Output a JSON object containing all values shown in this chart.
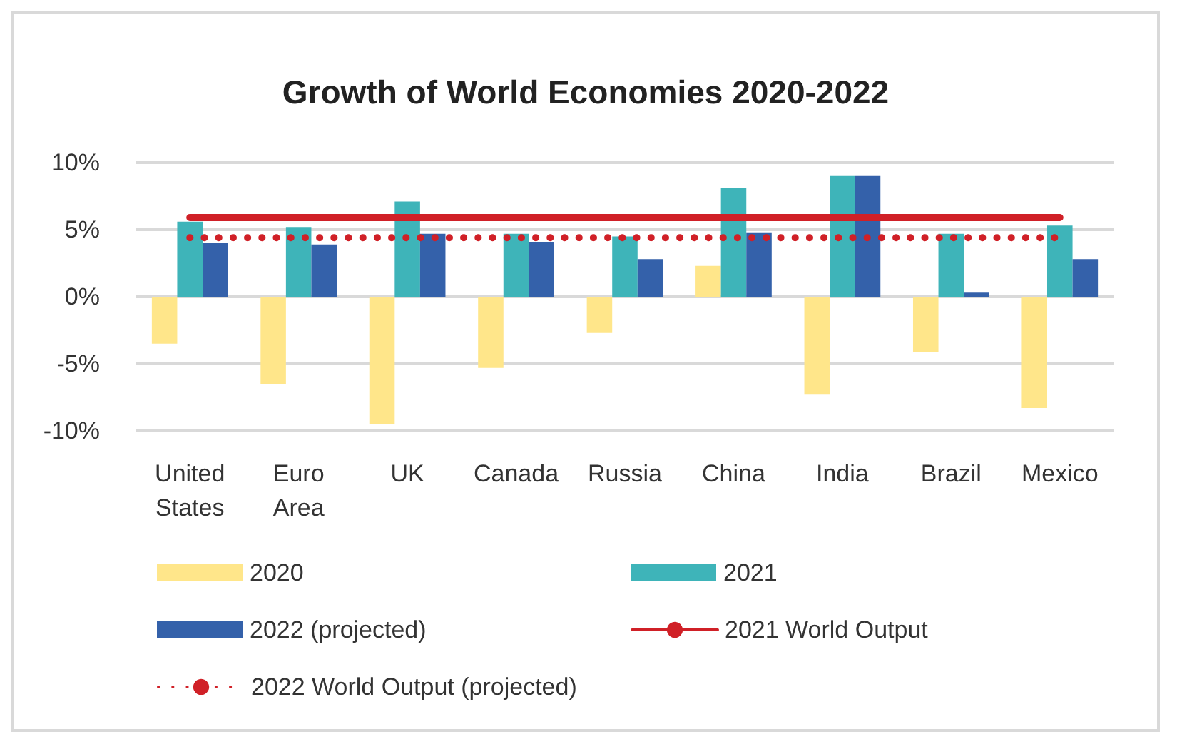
{
  "chart_data": {
    "type": "bar",
    "title": "Growth of World Economies 2020-2022",
    "categories": [
      "United\nStates",
      "Euro\nArea",
      "UK",
      "Canada",
      "Russia",
      "China",
      "India",
      "Brazil",
      "Mexico"
    ],
    "series": [
      {
        "name": "2020",
        "color": "#ffe68a",
        "values": [
          -3.5,
          -6.5,
          -9.5,
          -5.3,
          -2.7,
          2.3,
          -7.3,
          -4.1,
          -8.3
        ]
      },
      {
        "name": "2021",
        "color": "#3eb4b9",
        "values": [
          5.6,
          5.2,
          7.1,
          4.7,
          4.5,
          8.1,
          9.0,
          4.7,
          5.3
        ]
      },
      {
        "name": "2022 (projected)",
        "color": "#3461aa",
        "values": [
          4.0,
          3.9,
          4.7,
          4.1,
          2.8,
          4.8,
          9.0,
          0.3,
          2.8
        ]
      },
      {
        "name": "2021 World Output",
        "type": "line",
        "color": "#d02027",
        "line_style": "solid",
        "values": [
          5.9,
          5.9,
          5.9,
          5.9,
          5.9,
          5.9,
          5.9,
          5.9,
          5.9
        ]
      },
      {
        "name": "2022 World Output (projected)",
        "type": "line",
        "color": "#d02027",
        "line_style": "dotted",
        "values": [
          4.4,
          4.4,
          4.4,
          4.4,
          4.4,
          4.4,
          4.4,
          4.4,
          4.4
        ]
      }
    ],
    "ylim": [
      -10,
      10
    ],
    "yticks": [
      {
        "value": -10,
        "label": "-10%"
      },
      {
        "value": -5,
        "label": "-5%"
      },
      {
        "value": 0,
        "label": "0%"
      },
      {
        "value": 5,
        "label": "5%"
      },
      {
        "value": 10,
        "label": "10%"
      }
    ],
    "grid": "y",
    "legend": "bottom",
    "marker": "none"
  }
}
